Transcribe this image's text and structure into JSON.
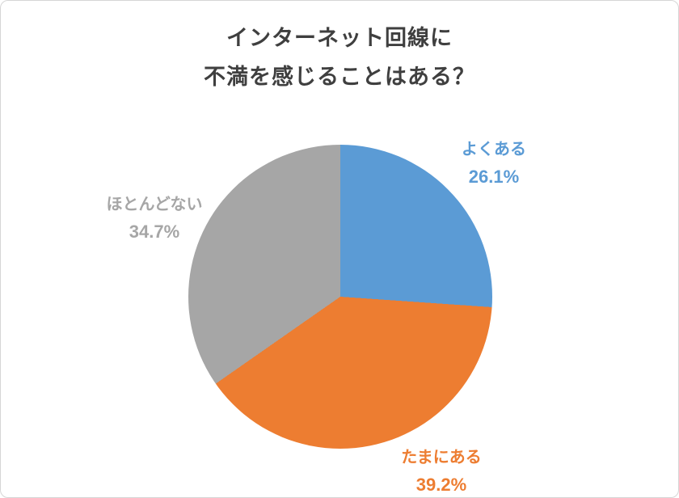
{
  "chart_data": {
    "type": "pie",
    "title_lines": [
      "インターネット回線に",
      "不満を感じることはある？"
    ],
    "start_angle_deg": 0,
    "direction": "clockwise",
    "legend_position": "outside-labels",
    "slices": [
      {
        "label": "よくある",
        "value": 26.1,
        "percent_text": "26.1%",
        "color": "#5B9BD5"
      },
      {
        "label": "たまにある",
        "value": 39.2,
        "percent_text": "39.2%",
        "color": "#ED7D31"
      },
      {
        "label": "ほとんどない",
        "value": 34.7,
        "percent_text": "34.7%",
        "color": "#A6A6A6"
      }
    ]
  }
}
